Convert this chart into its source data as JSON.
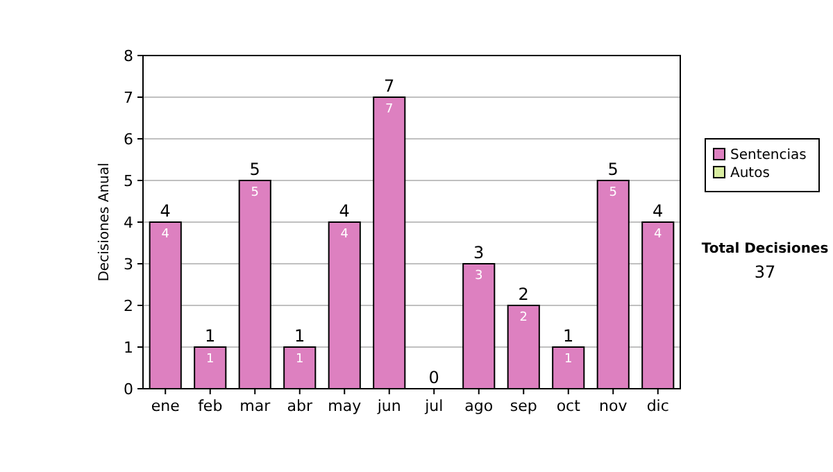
{
  "chart_data": {
    "type": "bar",
    "stacked": true,
    "ylabel": "Decisiones Anual",
    "categories": [
      "ene",
      "feb",
      "mar",
      "abr",
      "may",
      "jun",
      "jul",
      "ago",
      "sep",
      "oct",
      "nov",
      "dic"
    ],
    "series": [
      {
        "name": "Sentencias",
        "color": "#dd80c0",
        "values": [
          4,
          1,
          5,
          1,
          4,
          7,
          0,
          3,
          2,
          1,
          5,
          4
        ],
        "value_labels": [
          "4",
          "1",
          "5",
          "1",
          "4",
          "7",
          null,
          "3",
          "2",
          "1",
          "5",
          "4"
        ]
      },
      {
        "name": "Autos",
        "color": "#d8eca0",
        "values": [
          0,
          0,
          0,
          0,
          0,
          0,
          0,
          0,
          0,
          0,
          0,
          0
        ]
      }
    ],
    "totals": [
      "4",
      "1",
      "5",
      "1",
      "4",
      "7",
      "0",
      "3",
      "2",
      "1",
      "5",
      "4"
    ],
    "ylim": [
      0,
      8
    ],
    "yticks": [
      0,
      1,
      2,
      3,
      4,
      5,
      6,
      7,
      8
    ],
    "grid": "y",
    "legend": "right",
    "annotations": [
      "Total Decisiones",
      "37"
    ]
  }
}
